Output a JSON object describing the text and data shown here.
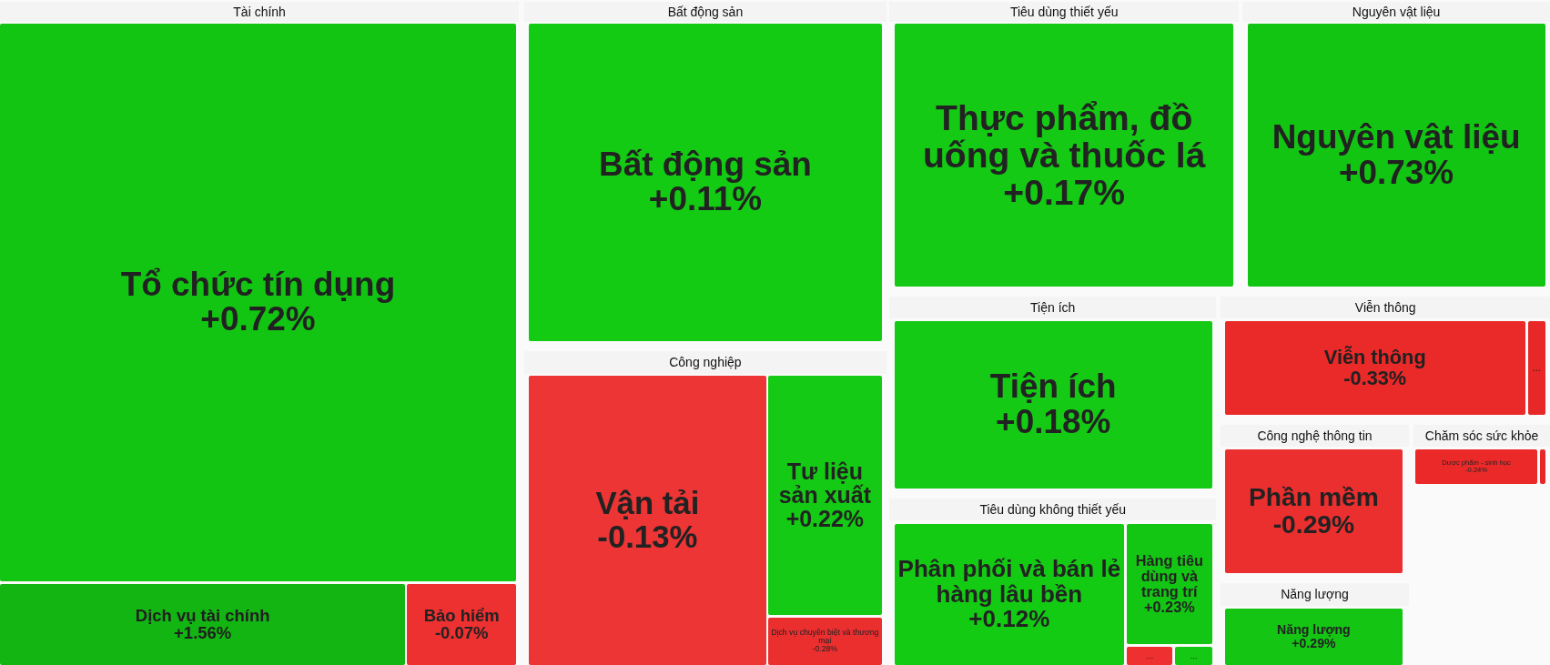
{
  "chart_data": {
    "type": "other",
    "annotations": [
      "Tài chính",
      "Bất động sản",
      "Tiêu dùng thiết yếu",
      "Nguyên vật liệu",
      "Công nghiệp",
      "Tiện ích",
      "Viễn thông",
      "Tiêu dùng không thiết yếu",
      "Công nghệ thông tin",
      "Chăm sóc sức khỏe",
      "Năng lượng"
    ],
    "categories": [
      "Tổ chức tín dụng",
      "Dịch vụ tài chính",
      "Bảo hiểm",
      "Bất động sản",
      "Thực phẩm, đồ uống và thuốc lá",
      "Nguyên vật liệu",
      "Vận tải",
      "Tư liệu sản xuất",
      "Dịch vụ chuyên biệt và thương mại",
      "Tiện ích",
      "Viễn thông",
      "...",
      "Phân phối và bán lẻ hàng lâu bền",
      "Hàng tiêu dùng và trang trí",
      "...",
      "...",
      "Phần mềm",
      "Dược phẩm - sinh học",
      null,
      "Năng lượng"
    ],
    "values": [
      0.72,
      1.56,
      -0.07,
      0.11,
      0.17,
      0.73,
      -0.13,
      0.22,
      -0.28,
      0.18,
      -0.33,
      null,
      0.12,
      0.23,
      null,
      null,
      -0.29,
      -0.24,
      null,
      0.29
    ],
    "value_labels": [
      "+0.72%",
      "+1.56%",
      "-0.07%",
      "+0.11%",
      "+0.17%",
      "+0.73%",
      "-0.13%",
      "+0.22%",
      "-0.28%",
      "+0.18%",
      "-0.33%",
      null,
      "+0.12%",
      "+0.23%",
      null,
      null,
      "-0.29%",
      "-0.24%",
      null,
      "+0.29%"
    ],
    "colors": [
      "#14cc14",
      "#14c414",
      "#ee3030",
      "#14cc14",
      "#14cc14",
      "#14cc14",
      "#ef3535",
      "#14cc14",
      "#ee3030",
      "#14cc14",
      "#ee2a2a",
      "#e82828",
      "#14cc14",
      "#14c814",
      "#ee3030",
      "#14c814",
      "#ee3030",
      "#ee2a2a",
      "#e82828",
      "#14c814"
    ]
  }
}
